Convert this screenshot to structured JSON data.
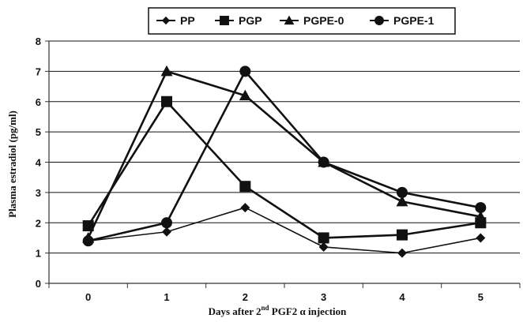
{
  "chart_data": {
    "type": "line",
    "title": "",
    "xlabel": "Days after 2nd PGF2 α injection",
    "ylabel": "Plasma estradiol (pg/ml)",
    "x": [
      0,
      1,
      2,
      3,
      4,
      5
    ],
    "xlim": [
      -0.5,
      5.5
    ],
    "ylim": [
      0,
      8
    ],
    "yticks": [
      0,
      1,
      2,
      3,
      4,
      5,
      6,
      7,
      8
    ],
    "grid": "horizontal",
    "legend_position": "top",
    "series": [
      {
        "name": "PP",
        "marker": "diamond",
        "values": [
          1.4,
          1.7,
          2.5,
          1.2,
          1.0,
          1.5
        ]
      },
      {
        "name": "PGP",
        "marker": "square",
        "values": [
          1.9,
          6.0,
          3.2,
          1.5,
          1.6,
          2.0
        ]
      },
      {
        "name": "PGPE-0",
        "marker": "triangle",
        "values": [
          1.5,
          7.0,
          6.2,
          4.0,
          2.7,
          2.2
        ]
      },
      {
        "name": "PGPE-1",
        "marker": "circle",
        "values": [
          1.4,
          2.0,
          7.0,
          4.0,
          3.0,
          2.5
        ]
      }
    ]
  },
  "xlabel_parts": {
    "before": "Days after 2",
    "superscript": "nd",
    "after": " PGF2 α injection"
  },
  "colors": {
    "line": "#111111",
    "grid": "#111111",
    "axis": "#333333"
  }
}
